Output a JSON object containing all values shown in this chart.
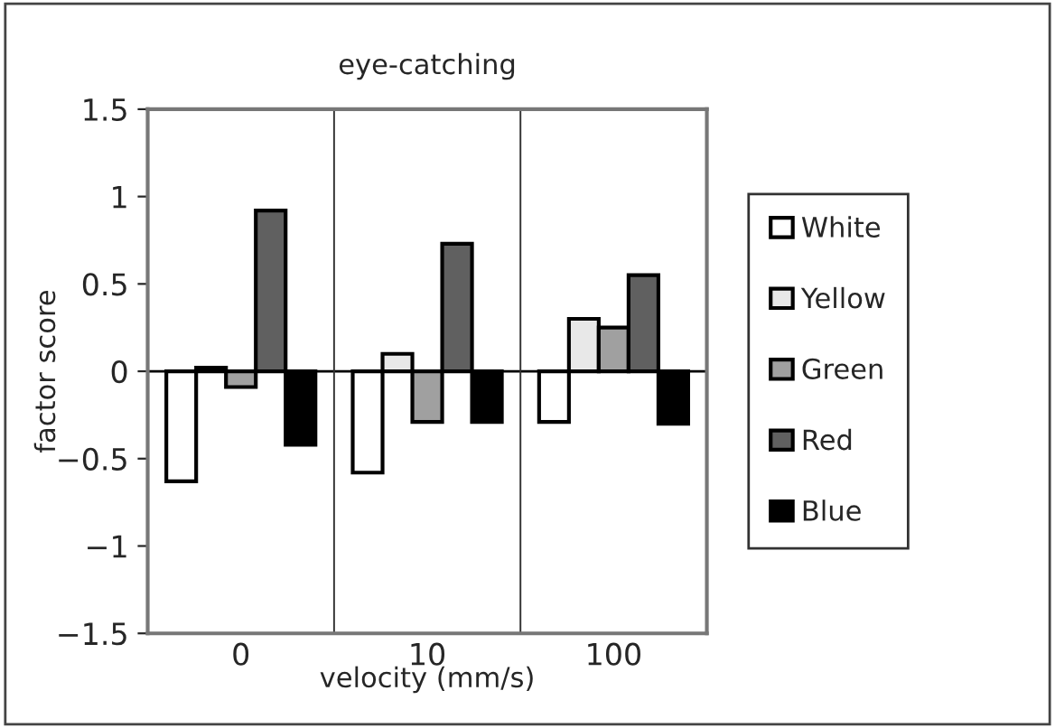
{
  "chart_data": {
    "type": "bar",
    "title": "eye-catching",
    "xlabel": "velocity (mm/s)",
    "ylabel": "factor score",
    "categories": [
      "0",
      "10",
      "100"
    ],
    "series": [
      {
        "name": "White",
        "color": "#ffffff",
        "values": [
          -0.63,
          -0.58,
          -0.29
        ]
      },
      {
        "name": "Yellow",
        "color": "#e8e8e8",
        "values": [
          0.02,
          0.1,
          0.3
        ]
      },
      {
        "name": "Green",
        "color": "#a0a0a0",
        "values": [
          -0.09,
          -0.29,
          0.25
        ]
      },
      {
        "name": "Red",
        "color": "#606060",
        "values": [
          0.92,
          0.73,
          0.55
        ]
      },
      {
        "name": "Blue",
        "color": "#000000",
        "values": [
          -0.42,
          -0.29,
          -0.3
        ]
      }
    ],
    "ylim": [
      -1.5,
      1.5
    ],
    "yticks": [
      {
        "value": -1.5,
        "label": "−1.5"
      },
      {
        "value": -1,
        "label": "−1"
      },
      {
        "value": -0.5,
        "label": "−0.5"
      },
      0,
      0.5,
      1,
      1.5
    ],
    "grid": "x",
    "legend": "right"
  }
}
